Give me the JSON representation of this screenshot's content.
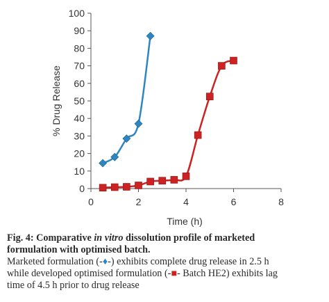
{
  "chart_data": {
    "type": "line",
    "xlabel": "Time (h)",
    "ylabel": "% Drug Release",
    "xlim": [
      0,
      8
    ],
    "ylim": [
      0,
      100
    ],
    "x_ticks": [
      "0",
      "2",
      "4",
      "6",
      "8"
    ],
    "y_ticks": [
      "0",
      "10",
      "20",
      "30",
      "40",
      "50",
      "60",
      "70",
      "80",
      "90",
      "100"
    ],
    "grid": false,
    "legend": "none",
    "series": [
      {
        "color": "#2e86c1",
        "marker": "diamond",
        "x": [
          0.5,
          1.0,
          1.5,
          2.0,
          2.5
        ],
        "y": [
          14.5,
          18.0,
          28.5,
          37.0,
          87.0
        ]
      },
      {
        "color": "#cc2222",
        "marker": "square",
        "x": [
          0.5,
          1.0,
          1.5,
          2.0,
          2.5,
          3.0,
          3.5,
          4.0,
          4.5,
          5.0,
          5.5,
          6.0
        ],
        "y": [
          0.5,
          0.8,
          1.0,
          1.8,
          4.0,
          4.5,
          5.0,
          7.0,
          30.5,
          52.5,
          70.0,
          73.0
        ]
      }
    ]
  },
  "caption": {
    "fig_label": "Fig. 4:",
    "title_part1": " Comparative ",
    "title_italic": "in vitro",
    "title_part2": " dissolution profile of marketed",
    "title_line2": "formulation with optimised batch.",
    "body_line1_a": "Marketed formulation (-",
    "body_line1_sym": "♦",
    "body_line1_b": "-) exhibits complete drug release in 2.5 h",
    "body_line2_a": "while developed optimised formulation (-",
    "body_line2_sym": "■",
    "body_line2_b": "- Batch HE2) exhibits lag",
    "body_line3": "time of 4.5 h prior to drug release"
  }
}
